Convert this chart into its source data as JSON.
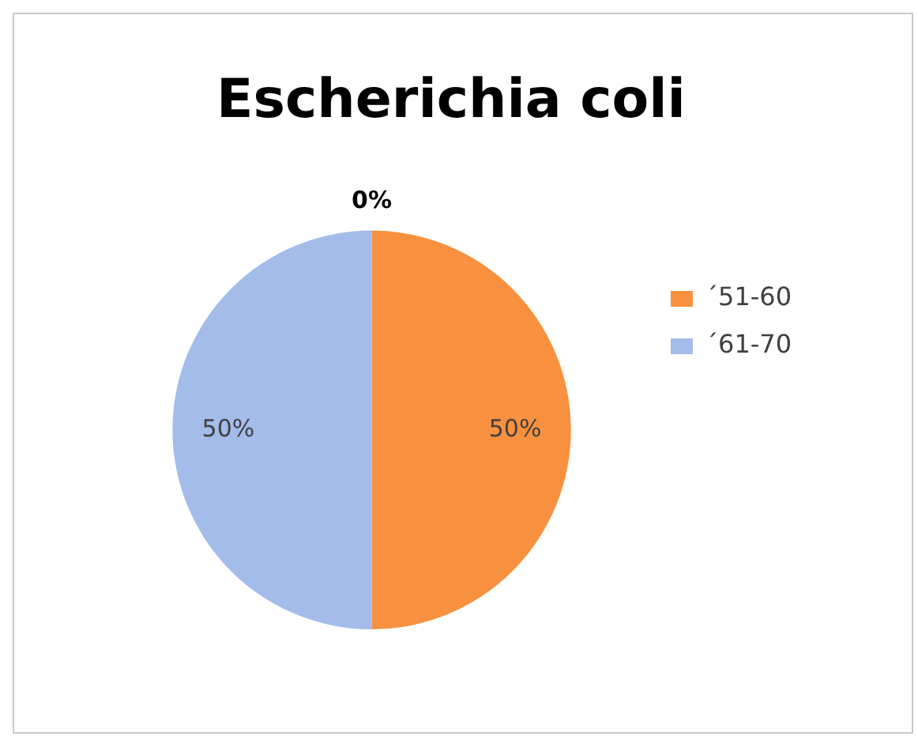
{
  "chart_data": {
    "type": "pie",
    "title": "Escherichia coli",
    "categories": [
      "´51-60",
      "´61-70"
    ],
    "values": [
      50,
      50
    ],
    "colors": [
      "#f7913f",
      "#a3bce9"
    ],
    "value_labels": [
      "50%",
      "50%"
    ],
    "annotations": [
      "0%"
    ],
    "legend": "right"
  }
}
